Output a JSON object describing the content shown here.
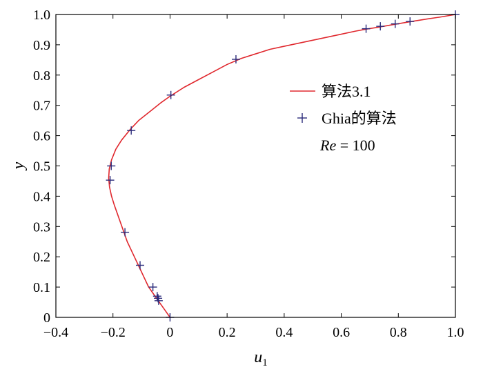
{
  "chart_data": {
    "type": "line",
    "title": "",
    "xlabel_main": "u",
    "xlabel_sub": "1",
    "ylabel": "y",
    "xlim": [
      -0.4,
      1.0
    ],
    "ylim": [
      0,
      1.0
    ],
    "xticks": [
      -0.4,
      -0.2,
      0,
      0.2,
      0.4,
      0.6,
      0.8,
      1.0
    ],
    "xtick_labels": [
      "−0.4",
      "−0.2",
      "0",
      "0.2",
      "0.4",
      "0.6",
      "0.8",
      "1.0"
    ],
    "yticks": [
      0,
      0.1,
      0.2,
      0.3,
      0.4,
      0.5,
      0.6,
      0.7,
      0.8,
      0.9,
      1.0
    ],
    "ytick_labels": [
      "0",
      "0.1",
      "0.2",
      "0.3",
      "0.4",
      "0.5",
      "0.6",
      "0.7",
      "0.8",
      "0.9",
      "1.0"
    ],
    "grid": false,
    "legend_position": "center-right",
    "annotation": {
      "italic": "Re",
      "rest": " = 100"
    },
    "series": [
      {
        "name": "算法3.1",
        "style": "line",
        "color": "#e0282e",
        "points": [
          [
            0,
            0
          ],
          [
            -0.015,
            0.02
          ],
          [
            -0.03,
            0.04
          ],
          [
            -0.045,
            0.06
          ],
          [
            -0.06,
            0.08
          ],
          [
            -0.075,
            0.1
          ],
          [
            -0.09,
            0.13
          ],
          [
            -0.11,
            0.17
          ],
          [
            -0.13,
            0.21
          ],
          [
            -0.15,
            0.25
          ],
          [
            -0.165,
            0.29
          ],
          [
            -0.18,
            0.33
          ],
          [
            -0.195,
            0.37
          ],
          [
            -0.205,
            0.4
          ],
          [
            -0.212,
            0.43
          ],
          [
            -0.215,
            0.46
          ],
          [
            -0.213,
            0.49
          ],
          [
            -0.205,
            0.52
          ],
          [
            -0.19,
            0.555
          ],
          [
            -0.17,
            0.585
          ],
          [
            -0.14,
            0.62
          ],
          [
            -0.11,
            0.65
          ],
          [
            -0.07,
            0.68
          ],
          [
            -0.03,
            0.71
          ],
          [
            0,
            0.73
          ],
          [
            0.05,
            0.76
          ],
          [
            0.1,
            0.785
          ],
          [
            0.15,
            0.81
          ],
          [
            0.2,
            0.835
          ],
          [
            0.25,
            0.855
          ],
          [
            0.3,
            0.87
          ],
          [
            0.35,
            0.885
          ],
          [
            0.4,
            0.895
          ],
          [
            0.45,
            0.905
          ],
          [
            0.5,
            0.915
          ],
          [
            0.55,
            0.925
          ],
          [
            0.6,
            0.935
          ],
          [
            0.65,
            0.945
          ],
          [
            0.69,
            0.952
          ],
          [
            0.73,
            0.958
          ],
          [
            0.79,
            0.968
          ],
          [
            0.84,
            0.976
          ],
          [
            0.9,
            0.985
          ],
          [
            0.95,
            0.992
          ],
          [
            1.0,
            1.0
          ]
        ]
      },
      {
        "name": "Ghia的算法",
        "style": "marker-plus",
        "color": "#2a2a7a",
        "points": [
          [
            0,
            0
          ],
          [
            -0.04,
            0.055
          ],
          [
            -0.042,
            0.063
          ],
          [
            -0.045,
            0.07
          ],
          [
            -0.06,
            0.1
          ],
          [
            -0.105,
            0.172
          ],
          [
            -0.158,
            0.281
          ],
          [
            -0.21,
            0.453
          ],
          [
            -0.206,
            0.5
          ],
          [
            -0.136,
            0.617
          ],
          [
            0.003,
            0.734
          ],
          [
            0.231,
            0.852
          ],
          [
            0.687,
            0.953
          ],
          [
            0.737,
            0.961
          ],
          [
            0.789,
            0.969
          ],
          [
            0.841,
            0.977
          ],
          [
            1.0,
            1.0
          ]
        ]
      }
    ]
  }
}
